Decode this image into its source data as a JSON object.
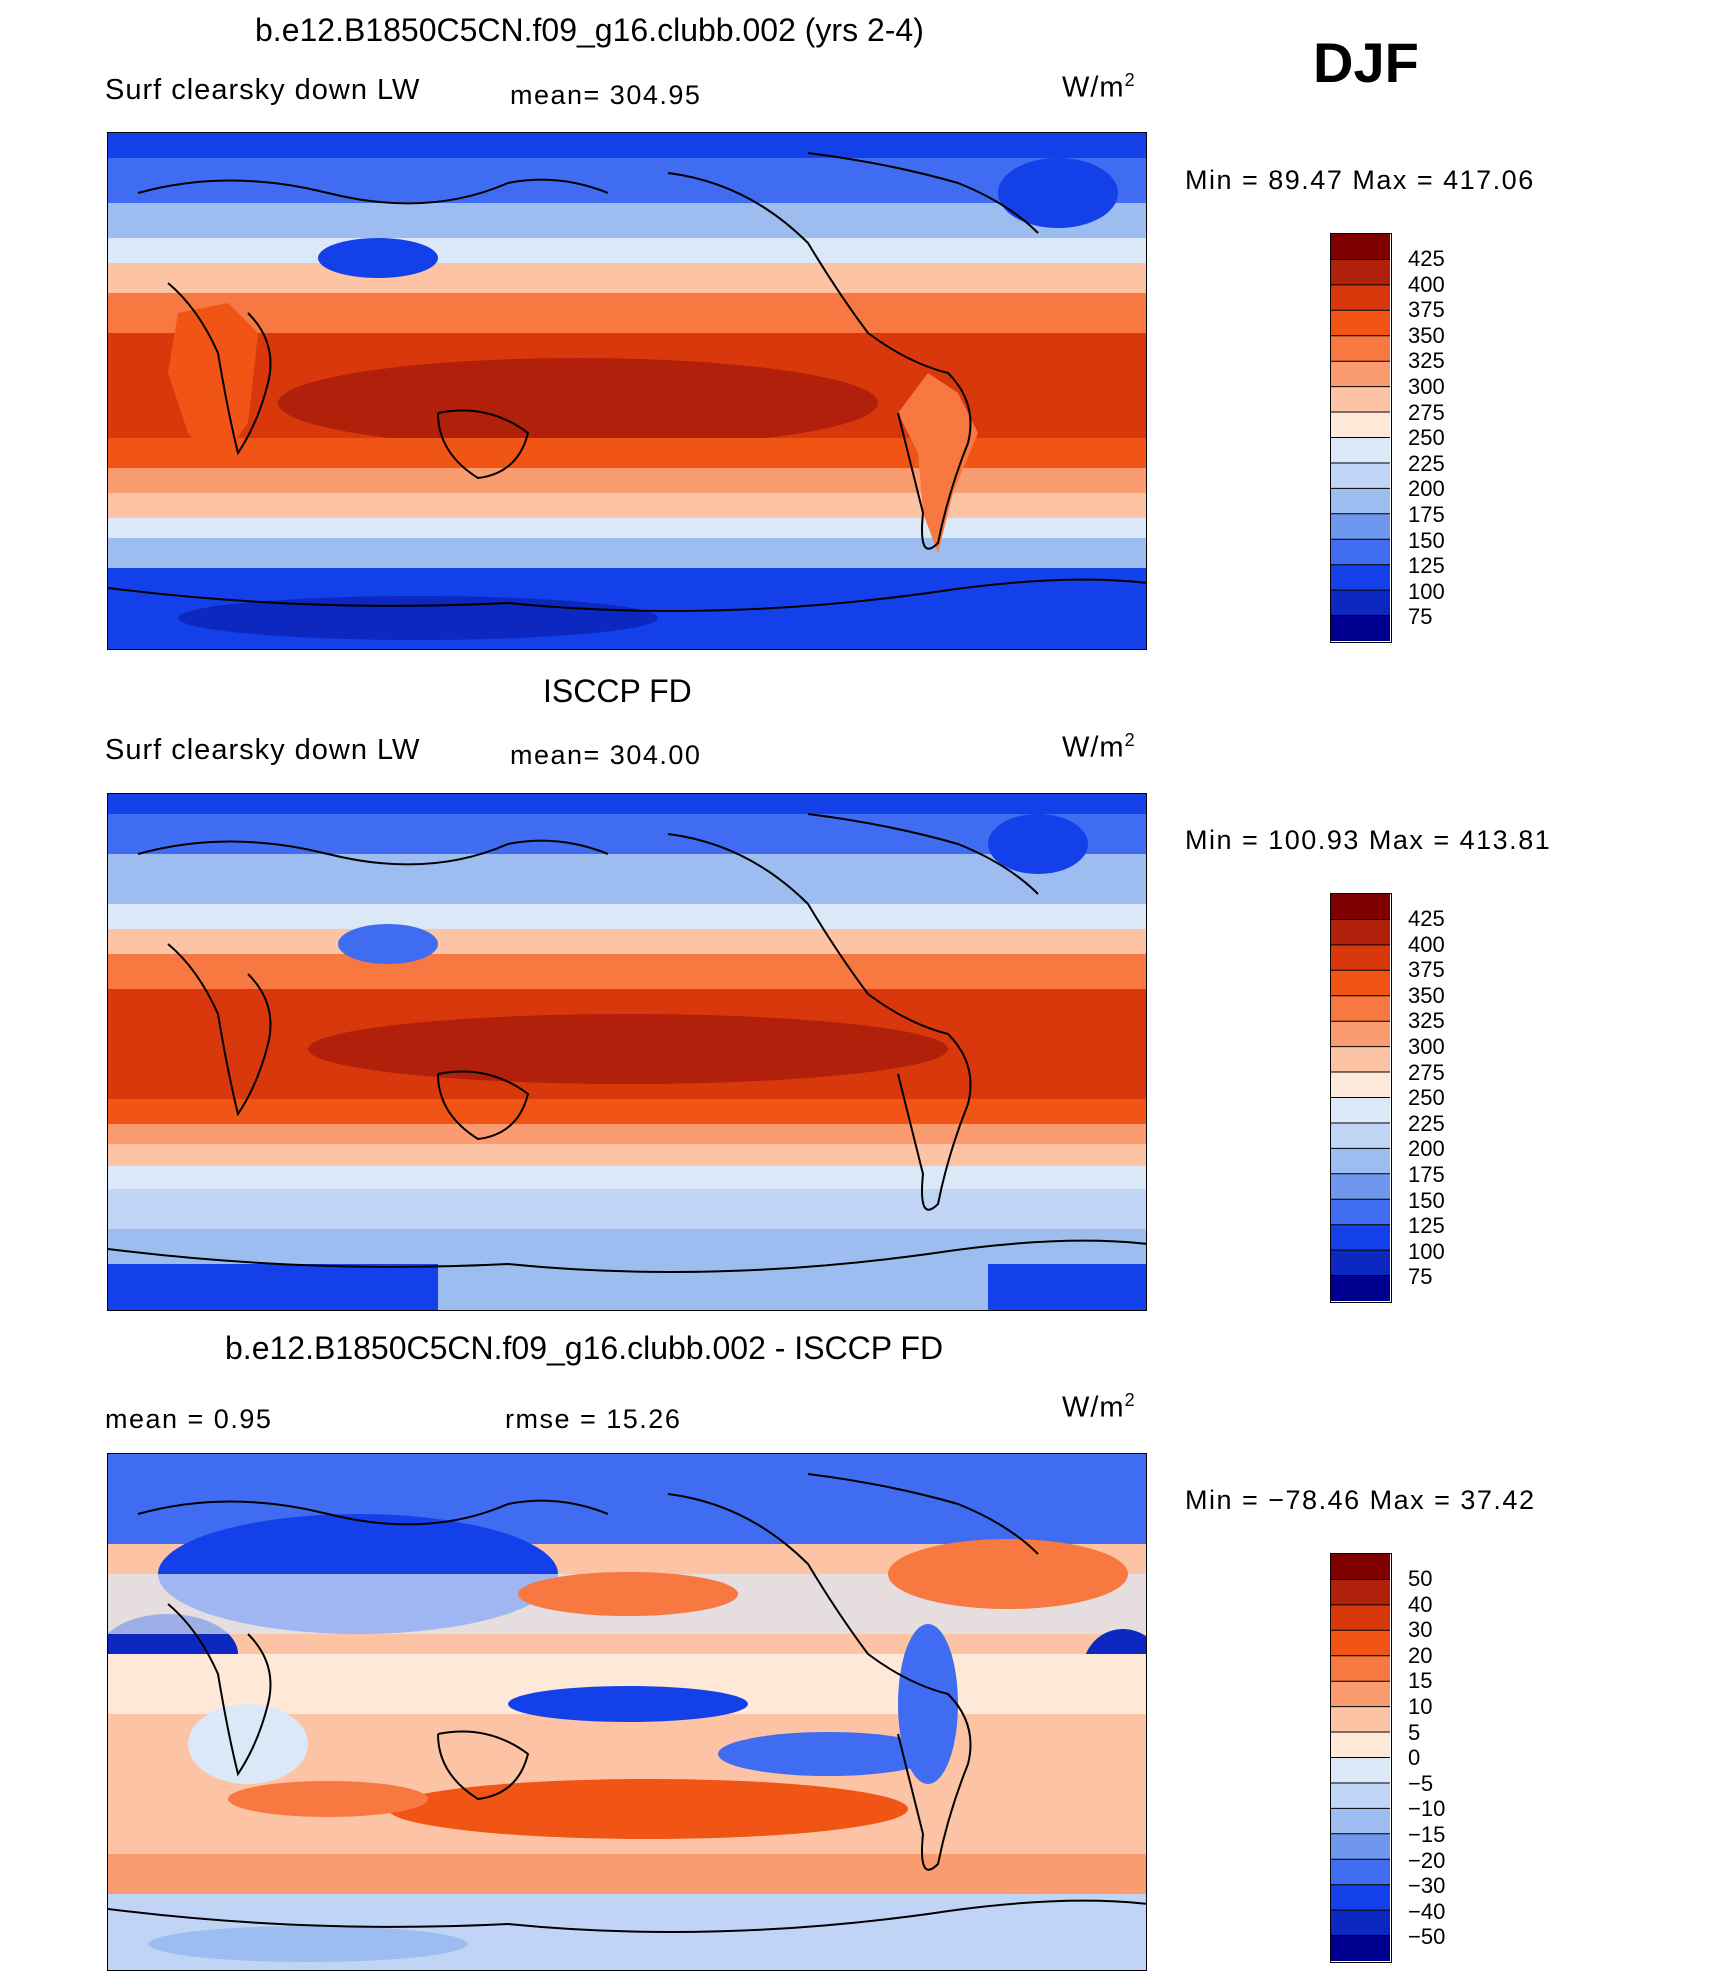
{
  "season": "DJF",
  "units": "W/m",
  "units_sup": "2",
  "panels": [
    {
      "title": "b.e12.B1850C5CN.f09_g16.clubb.002 (yrs 2-4)",
      "variable": "Surf clearsky down LW",
      "mean_label": "mean= 304.95",
      "min_max": "Min =   89.47 Max = 417.06",
      "colorbar_labels": [
        "425",
        "400",
        "375",
        "350",
        "325",
        "300",
        "275",
        "250",
        "225",
        "200",
        "175",
        "150",
        "125",
        "100",
        "75"
      ]
    },
    {
      "title": "ISCCP FD",
      "variable": "Surf clearsky down LW",
      "mean_label": "mean= 304.00",
      "min_max": "Min = 100.93 Max = 413.81",
      "colorbar_labels": [
        "425",
        "400",
        "375",
        "350",
        "325",
        "300",
        "275",
        "250",
        "225",
        "200",
        "175",
        "150",
        "125",
        "100",
        "75"
      ]
    },
    {
      "title": "b.e12.B1850C5CN.f09_g16.clubb.002 - ISCCP FD",
      "mean_label": "mean =    0.95",
      "rmse_label": "rmse =    15.26",
      "min_max": "Min = −78.46 Max =   37.42",
      "colorbar_labels": [
        "50",
        "40",
        "30",
        "20",
        "15",
        "10",
        "5",
        "0",
        "−5",
        "−10",
        "−15",
        "−20",
        "−30",
        "−40",
        "−50"
      ]
    }
  ],
  "colors": {
    "abs_scale": [
      "#800000",
      "#b0200a",
      "#d8380c",
      "#f05516",
      "#f77840",
      "#fa9b70",
      "#fcc3a5",
      "#fee8d8",
      "#dbe8f7",
      "#c0d5f5",
      "#9dbcf0",
      "#6f97ee",
      "#3f6cf0",
      "#1440ea",
      "#0c28c0",
      "#000090"
    ],
    "diff_scale": [
      "#800000",
      "#b0200a",
      "#d8380c",
      "#f05516",
      "#f77840",
      "#fa9b70",
      "#fcc3a5",
      "#fee8d8",
      "#dbe8f7",
      "#c0d5f5",
      "#9dbcf0",
      "#6f97ee",
      "#3f6cf0",
      "#1440ea",
      "#0c28c0",
      "#000090"
    ]
  }
}
